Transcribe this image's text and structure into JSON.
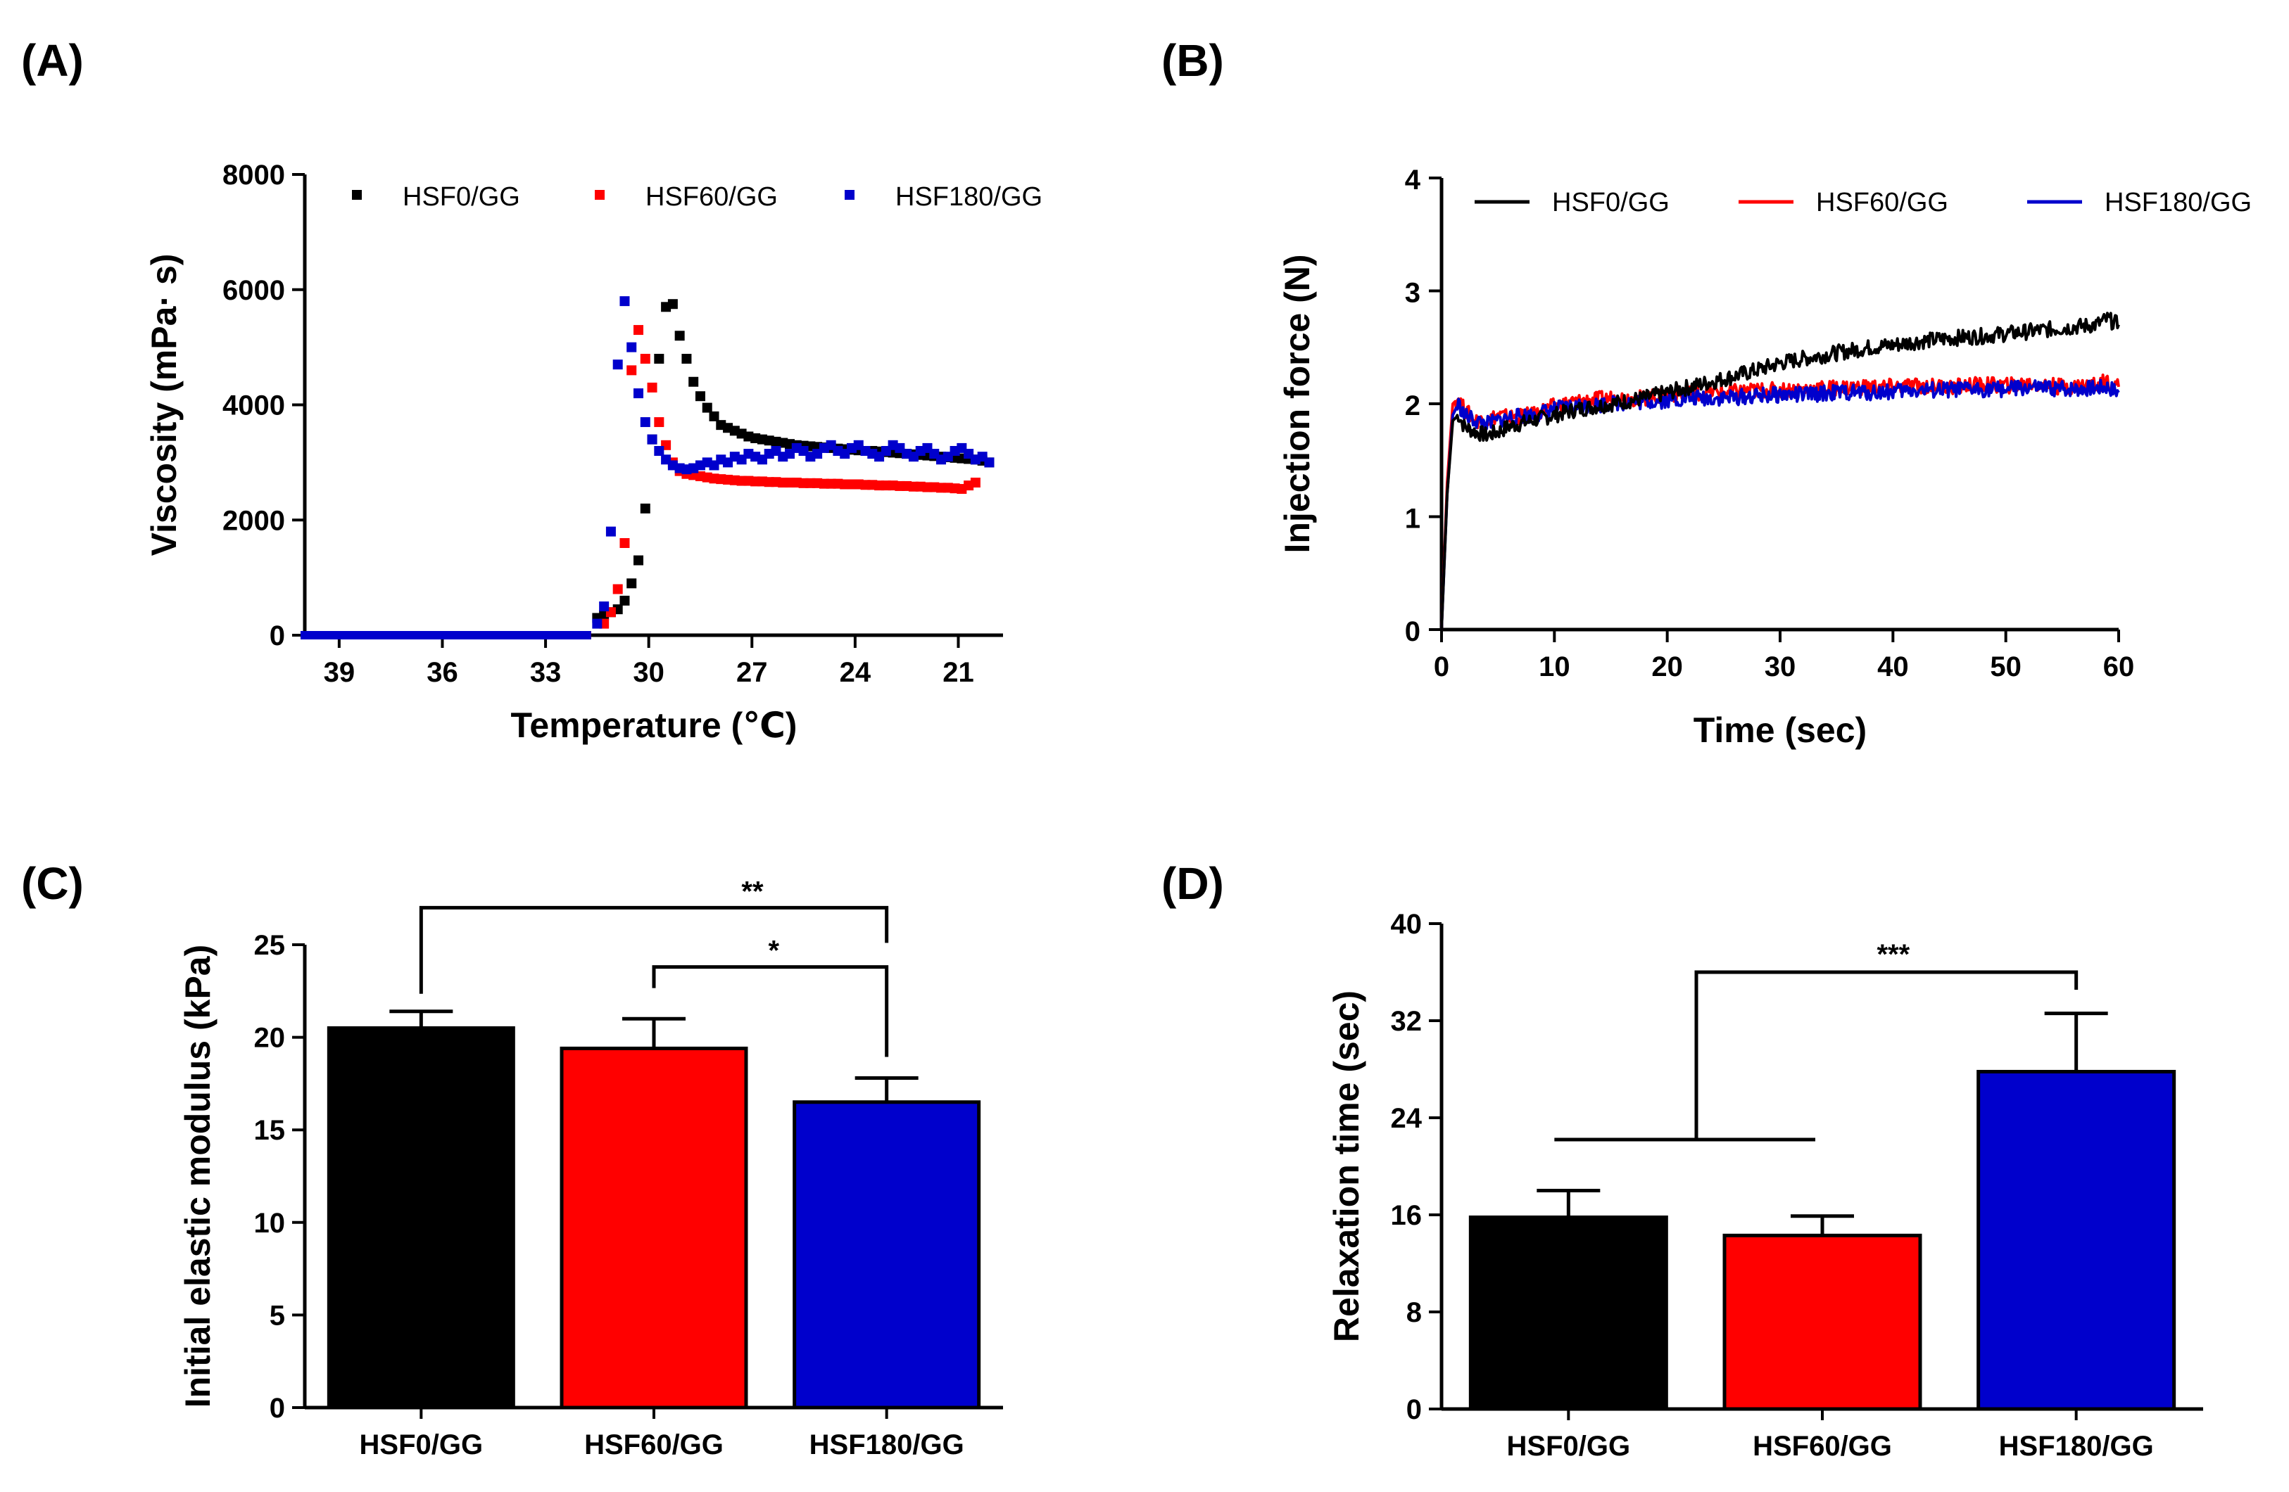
{
  "colors": {
    "black": "#000000",
    "red": "#ff0000",
    "blue": "#0000cc"
  },
  "chart_data": [
    {
      "id": "A",
      "panel_label": "(A)",
      "type": "scatter",
      "xlabel": "Temperature (℃)",
      "ylabel": "Viscosity (mPa· s)",
      "xlim": [
        40,
        19.7
      ],
      "ylim": [
        0,
        8000
      ],
      "xticks": [
        39,
        36,
        33,
        30,
        27,
        24,
        21
      ],
      "yticks": [
        0,
        2000,
        4000,
        6000,
        8000
      ],
      "legend_position": "top",
      "series": [
        {
          "name": "HSF0/GG",
          "color": "#000000",
          "x": [
            31.5,
            31.3,
            31.1,
            30.9,
            30.7,
            30.5,
            30.3,
            30.1,
            29.9,
            29.7,
            29.5,
            29.3,
            29.1,
            28.9,
            28.7,
            28.5,
            28.3,
            28.1,
            27.9,
            27.7,
            27.5,
            27.3,
            27.1,
            26.9,
            26.7,
            26.5,
            26.3,
            26.1,
            25.9,
            25.7,
            25.5,
            25.3,
            25.1,
            24.9,
            24.7,
            24.5,
            24.3,
            24.1,
            23.9,
            23.7,
            23.5,
            23.3,
            23.1,
            22.9,
            22.7,
            22.5,
            22.3,
            22.1,
            21.9,
            21.7,
            21.5,
            21.3,
            21.1,
            20.9,
            20.7,
            20.5,
            20.3,
            20.1
          ],
          "values": [
            300,
            350,
            400,
            450,
            600,
            900,
            1300,
            2200,
            3400,
            4800,
            5700,
            5750,
            5200,
            4800,
            4400,
            4150,
            3950,
            3800,
            3650,
            3600,
            3550,
            3500,
            3450,
            3420,
            3400,
            3380,
            3360,
            3340,
            3320,
            3300,
            3290,
            3280,
            3270,
            3260,
            3250,
            3240,
            3230,
            3220,
            3210,
            3200,
            3200,
            3190,
            3180,
            3170,
            3160,
            3150,
            3140,
            3130,
            3120,
            3110,
            3100,
            3090,
            3080,
            3070,
            3060,
            3050,
            3030,
            3000
          ]
        },
        {
          "name": "HSF60/GG",
          "color": "#ff0000",
          "x": [
            31.3,
            31.1,
            30.9,
            30.7,
            30.5,
            30.3,
            30.1,
            29.9,
            29.7,
            29.5,
            29.3,
            29.1,
            28.9,
            28.7,
            28.5,
            28.3,
            28.1,
            27.9,
            27.7,
            27.5,
            27.3,
            27.1,
            26.9,
            26.7,
            26.5,
            26.3,
            26.1,
            25.9,
            25.7,
            25.5,
            25.3,
            25.1,
            24.9,
            24.7,
            24.5,
            24.3,
            24.1,
            23.9,
            23.7,
            23.5,
            23.3,
            23.1,
            22.9,
            22.7,
            22.5,
            22.3,
            22.1,
            21.9,
            21.7,
            21.5,
            21.3,
            21.1,
            20.9,
            20.7,
            20.5
          ],
          "values": [
            200,
            400,
            800,
            1600,
            4600,
            5300,
            4800,
            4300,
            3700,
            3300,
            3000,
            2850,
            2800,
            2780,
            2760,
            2740,
            2720,
            2710,
            2700,
            2690,
            2680,
            2680,
            2670,
            2670,
            2660,
            2660,
            2650,
            2650,
            2650,
            2640,
            2640,
            2640,
            2630,
            2630,
            2630,
            2620,
            2620,
            2620,
            2610,
            2610,
            2600,
            2600,
            2600,
            2590,
            2590,
            2580,
            2580,
            2570,
            2570,
            2560,
            2560,
            2550,
            2540,
            2600,
            2650
          ]
        },
        {
          "name": "HSF180/GG",
          "color": "#0000cc",
          "x": [
            31.5,
            31.3,
            31.1,
            30.9,
            30.7,
            30.5,
            30.3,
            30.1,
            29.9,
            29.7,
            29.5,
            29.3,
            29.1,
            28.9,
            28.7,
            28.5,
            28.3,
            28.1,
            27.9,
            27.7,
            27.5,
            27.3,
            27.1,
            26.9,
            26.7,
            26.5,
            26.3,
            26.1,
            25.9,
            25.7,
            25.5,
            25.3,
            25.1,
            24.9,
            24.7,
            24.5,
            24.3,
            24.1,
            23.9,
            23.7,
            23.5,
            23.3,
            23.1,
            22.9,
            22.7,
            22.5,
            22.3,
            22.1,
            21.9,
            21.7,
            21.5,
            21.3,
            21.1,
            20.9,
            20.7,
            20.5,
            20.3,
            20.1
          ],
          "values": [
            200,
            500,
            1800,
            4700,
            5800,
            5000,
            4200,
            3700,
            3400,
            3200,
            3050,
            2950,
            2900,
            2880,
            2900,
            2950,
            3000,
            2950,
            3050,
            3000,
            3100,
            3050,
            3150,
            3100,
            3050,
            3150,
            3200,
            3100,
            3150,
            3250,
            3200,
            3100,
            3150,
            3250,
            3300,
            3200,
            3150,
            3250,
            3300,
            3200,
            3150,
            3100,
            3200,
            3300,
            3250,
            3150,
            3100,
            3200,
            3250,
            3150,
            3050,
            3100,
            3200,
            3250,
            3150,
            3050,
            3100,
            3000
          ]
        }
      ],
      "baseline_note": "all series ~0 from 40 to 31.6"
    },
    {
      "id": "B",
      "panel_label": "(B)",
      "type": "line",
      "xlabel": "Time (sec)",
      "ylabel": "Injection force (N)",
      "xlim": [
        0,
        60
      ],
      "ylim": [
        0,
        4
      ],
      "xticks": [
        0,
        10,
        20,
        30,
        40,
        50,
        60
      ],
      "yticks": [
        0,
        1,
        2,
        3,
        4
      ],
      "legend_position": "top",
      "series": [
        {
          "name": "HSF0/GG",
          "color": "#000000",
          "x": [
            0,
            0.5,
            1,
            1.5,
            2,
            3,
            4,
            5,
            6,
            8,
            10,
            12,
            15,
            18,
            20,
            22,
            25,
            28,
            30,
            32,
            35,
            38,
            40,
            42,
            45,
            48,
            50,
            52,
            55,
            58,
            59,
            60
          ],
          "values": [
            0,
            1.2,
            1.85,
            1.9,
            1.8,
            1.75,
            1.72,
            1.75,
            1.8,
            1.85,
            1.9,
            1.95,
            2.0,
            2.05,
            2.1,
            2.15,
            2.22,
            2.3,
            2.36,
            2.4,
            2.45,
            2.5,
            2.52,
            2.55,
            2.58,
            2.6,
            2.62,
            2.64,
            2.67,
            2.7,
            2.75,
            2.7
          ]
        },
        {
          "name": "HSF60/GG",
          "color": "#ff0000",
          "x": [
            0,
            0.5,
            1,
            1.5,
            2,
            3,
            4,
            5,
            6,
            8,
            10,
            12,
            15,
            18,
            20,
            22,
            25,
            28,
            30,
            32,
            35,
            38,
            40,
            42,
            45,
            48,
            50,
            52,
            55,
            58,
            59,
            60
          ],
          "values": [
            0,
            1.3,
            2.0,
            2.05,
            1.95,
            1.85,
            1.85,
            1.9,
            1.88,
            1.9,
            1.98,
            2.02,
            2.05,
            2.05,
            2.08,
            2.1,
            2.1,
            2.12,
            2.12,
            2.13,
            2.14,
            2.15,
            2.15,
            2.16,
            2.15,
            2.17,
            2.16,
            2.18,
            2.15,
            2.17,
            2.2,
            2.15
          ]
        },
        {
          "name": "HSF180/GG",
          "color": "#0000cc",
          "x": [
            0,
            0.5,
            1,
            1.5,
            2,
            3,
            4,
            5,
            6,
            8,
            10,
            12,
            15,
            18,
            20,
            22,
            25,
            28,
            30,
            32,
            35,
            38,
            40,
            42,
            45,
            48,
            50,
            52,
            55,
            58,
            59,
            60
          ],
          "values": [
            0,
            1.2,
            1.9,
            2.0,
            1.9,
            1.85,
            1.82,
            1.85,
            1.88,
            1.9,
            1.95,
            1.98,
            2.0,
            2.02,
            2.03,
            2.05,
            2.05,
            2.07,
            2.08,
            2.08,
            2.1,
            2.1,
            2.11,
            2.12,
            2.12,
            2.13,
            2.13,
            2.14,
            2.13,
            2.14,
            2.15,
            2.1
          ]
        }
      ]
    },
    {
      "id": "C",
      "panel_label": "(C)",
      "type": "bar",
      "xlabel": "",
      "ylabel": "Initial elastic modulus (kPa)",
      "ylim": [
        0,
        25
      ],
      "yticks": [
        0,
        5,
        10,
        15,
        20,
        25
      ],
      "categories": [
        "HSF0/GG",
        "HSF60/GG",
        "HSF180/GG"
      ],
      "values": [
        20.5,
        19.4,
        16.5
      ],
      "errors": [
        0.9,
        1.6,
        1.3
      ],
      "colors": [
        "#000000",
        "#ff0000",
        "#0000cc"
      ],
      "significance": [
        {
          "from": 0,
          "to": 2,
          "label": "**",
          "level": 27.0
        },
        {
          "from": 1,
          "to": 2,
          "label": "*",
          "level": 23.8
        }
      ]
    },
    {
      "id": "D",
      "panel_label": "(D)",
      "type": "bar",
      "xlabel": "",
      "ylabel": "Relaxation time (sec)",
      "ylim": [
        0,
        40
      ],
      "yticks": [
        0,
        8,
        16,
        24,
        32,
        40
      ],
      "categories": [
        "HSF0/GG",
        "HSF60/GG",
        "HSF180/GG"
      ],
      "values": [
        15.8,
        14.3,
        27.8
      ],
      "errors": [
        2.2,
        1.6,
        4.8
      ],
      "colors": [
        "#000000",
        "#ff0000",
        "#0000cc"
      ],
      "significance": [
        {
          "group_from": 0,
          "group_to": 1,
          "group_level": 22.2,
          "to": 2,
          "label": "***",
          "level": 36.0
        }
      ]
    }
  ]
}
